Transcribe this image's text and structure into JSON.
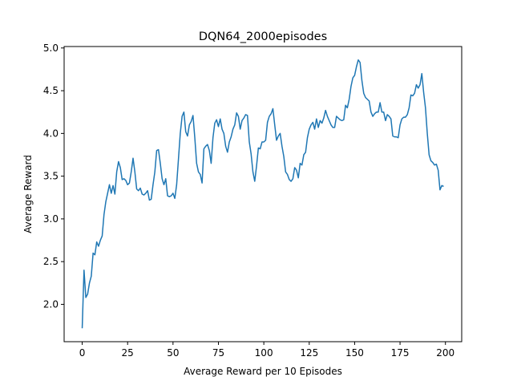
{
  "chart_data": {
    "type": "line",
    "title": "DQN64_2000episodes",
    "xlabel": "Average Reward per 10 Episodes",
    "ylabel": "Average Reward",
    "x": [
      0,
      1,
      2,
      3,
      4,
      5,
      6,
      7,
      8,
      9,
      10,
      11,
      12,
      13,
      14,
      15,
      16,
      17,
      18,
      19,
      20,
      21,
      22,
      23,
      24,
      25,
      26,
      27,
      28,
      29,
      30,
      31,
      32,
      33,
      34,
      35,
      36,
      37,
      38,
      39,
      40,
      41,
      42,
      43,
      44,
      45,
      46,
      47,
      48,
      49,
      50,
      51,
      52,
      53,
      54,
      55,
      56,
      57,
      58,
      59,
      60,
      61,
      62,
      63,
      64,
      65,
      66,
      67,
      68,
      69,
      70,
      71,
      72,
      73,
      74,
      75,
      76,
      77,
      78,
      79,
      80,
      81,
      82,
      83,
      84,
      85,
      86,
      87,
      88,
      89,
      90,
      91,
      92,
      93,
      94,
      95,
      96,
      97,
      98,
      99,
      100,
      101,
      102,
      103,
      104,
      105,
      106,
      107,
      108,
      109,
      110,
      111,
      112,
      113,
      114,
      115,
      116,
      117,
      118,
      119,
      120,
      121,
      122,
      123,
      124,
      125,
      126,
      127,
      128,
      129,
      130,
      131,
      132,
      133,
      134,
      135,
      136,
      137,
      138,
      139,
      140,
      141,
      142,
      143,
      144,
      145,
      146,
      147,
      148,
      149,
      150,
      151,
      152,
      153,
      154,
      155,
      156,
      157,
      158,
      159,
      160,
      161,
      162,
      163,
      164,
      165,
      166,
      167,
      168,
      169,
      170,
      171,
      172,
      173,
      174,
      175,
      176,
      177,
      178,
      179,
      180,
      181,
      182,
      183,
      184,
      185,
      186,
      187,
      188,
      189,
      190,
      191,
      192,
      193,
      194,
      195,
      196,
      197,
      198,
      199
    ],
    "series": [
      {
        "color": "#1f77b4",
        "values": [
          1.72,
          2.4,
          2.08,
          2.12,
          2.25,
          2.33,
          2.6,
          2.58,
          2.73,
          2.68,
          2.75,
          2.8,
          3.05,
          3.2,
          3.3,
          3.4,
          3.3,
          3.39,
          3.29,
          3.55,
          3.67,
          3.6,
          3.46,
          3.47,
          3.45,
          3.4,
          3.42,
          3.55,
          3.71,
          3.55,
          3.35,
          3.33,
          3.36,
          3.29,
          3.28,
          3.3,
          3.33,
          3.22,
          3.23,
          3.4,
          3.55,
          3.8,
          3.81,
          3.65,
          3.47,
          3.4,
          3.47,
          3.27,
          3.26,
          3.27,
          3.3,
          3.24,
          3.4,
          3.7,
          4.0,
          4.2,
          4.25,
          4.02,
          3.97,
          4.1,
          4.14,
          4.21,
          3.95,
          3.65,
          3.55,
          3.52,
          3.42,
          3.82,
          3.85,
          3.87,
          3.8,
          3.65,
          3.95,
          4.12,
          4.16,
          4.08,
          4.17,
          4.05,
          4.0,
          3.85,
          3.78,
          3.9,
          3.96,
          4.05,
          4.1,
          4.24,
          4.2,
          4.05,
          4.15,
          4.18,
          4.22,
          4.21,
          3.9,
          3.76,
          3.55,
          3.44,
          3.62,
          3.83,
          3.82,
          3.9,
          3.9,
          3.92,
          4.13,
          4.2,
          4.23,
          4.29,
          4.1,
          3.92,
          3.97,
          4.0,
          3.85,
          3.73,
          3.55,
          3.52,
          3.46,
          3.44,
          3.47,
          3.6,
          3.57,
          3.48,
          3.65,
          3.63,
          3.75,
          3.78,
          3.95,
          4.05,
          4.1,
          4.13,
          4.05,
          4.17,
          4.07,
          4.15,
          4.12,
          4.18,
          4.27,
          4.2,
          4.15,
          4.1,
          4.07,
          4.07,
          4.2,
          4.18,
          4.16,
          4.15,
          4.16,
          4.33,
          4.3,
          4.4,
          4.55,
          4.65,
          4.68,
          4.78,
          4.86,
          4.83,
          4.62,
          4.47,
          4.42,
          4.4,
          4.38,
          4.25,
          4.2,
          4.23,
          4.25,
          4.25,
          4.36,
          4.25,
          4.25,
          4.15,
          4.22,
          4.2,
          4.17,
          3.97,
          3.96,
          3.96,
          3.95,
          4.1,
          4.17,
          4.19,
          4.19,
          4.22,
          4.3,
          4.45,
          4.44,
          4.47,
          4.57,
          4.53,
          4.57,
          4.7,
          4.48,
          4.3,
          4.0,
          3.75,
          3.68,
          3.66,
          3.63,
          3.64,
          3.57,
          3.34,
          3.39,
          3.38
        ]
      }
    ],
    "xlim": [
      -9.95,
      208.95
    ],
    "ylim": [
      1.563,
      5.017
    ],
    "xticks": [
      0,
      25,
      50,
      75,
      100,
      125,
      150,
      175,
      200
    ],
    "yticks": [
      {
        "value": 2,
        "label": "2.0"
      },
      2.5,
      {
        "value": 3,
        "label": "3.0"
      },
      3.5,
      {
        "value": 4,
        "label": "4.0"
      },
      4.5,
      {
        "value": 5,
        "label": "5.0"
      }
    ],
    "grid": false
  }
}
